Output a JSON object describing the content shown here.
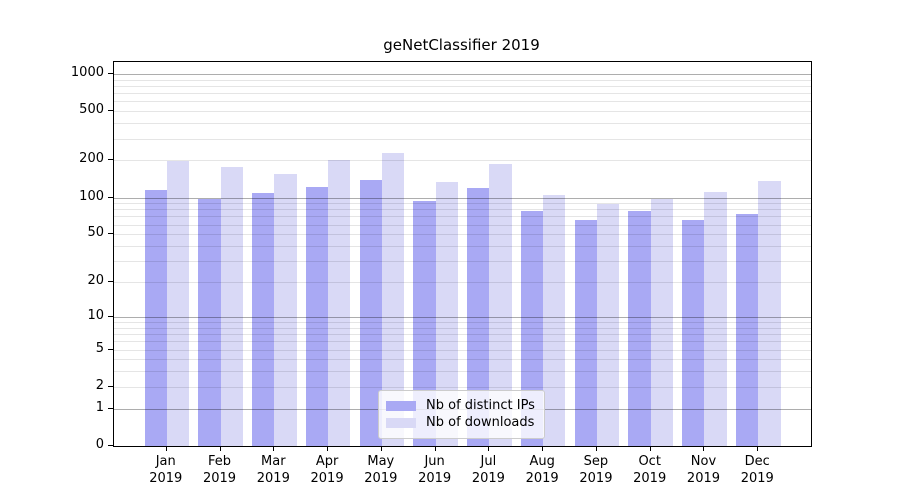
{
  "chart_data": {
    "type": "bar",
    "title": "geNetClassifier 2019",
    "categories": [
      "Jan",
      "Feb",
      "Mar",
      "Apr",
      "May",
      "Jun",
      "Jul",
      "Aug",
      "Sep",
      "Oct",
      "Nov",
      "Dec"
    ],
    "x_tick_line2": "2019",
    "series": [
      {
        "name": "Nb of distinct IPs",
        "color": "#a9a9f4",
        "values": [
          115,
          97,
          108,
          122,
          138,
          93,
          119,
          78,
          66,
          78,
          65,
          74
        ]
      },
      {
        "name": "Nb of downloads",
        "color": "#d9d9f6",
        "values": [
          198,
          176,
          154,
          200,
          230,
          133,
          188,
          104,
          88,
          97,
          110,
          135
        ]
      }
    ],
    "yscale": "log1p",
    "yticks": [
      0,
      1,
      2,
      5,
      10,
      20,
      50,
      100,
      200,
      500,
      1000
    ],
    "ylim": [
      0,
      1250
    ],
    "grid": "horizontal",
    "legend_position": "bottom-center"
  },
  "colors": {
    "grid_major": "rgba(0,0,0,0.32)",
    "grid_minor": "rgba(0,0,0,0.10)",
    "axis": "#000000",
    "background": "#ffffff"
  }
}
